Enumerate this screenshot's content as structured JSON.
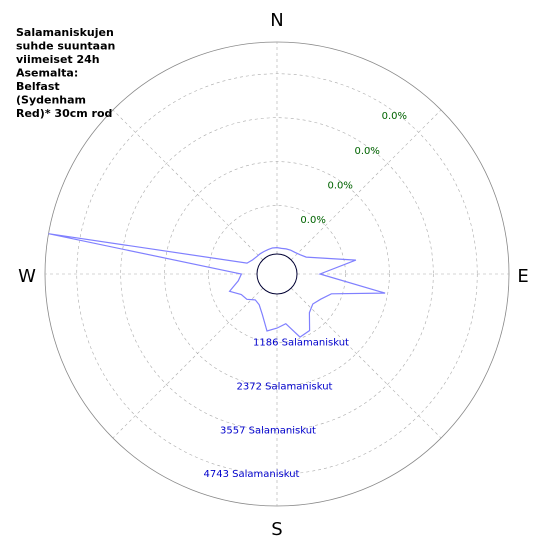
{
  "chart_data": {
    "type": "polar",
    "title_lines": [
      "Salamaniskujen",
      "suhde suuntaan",
      "viimeiset 24h",
      "Asemalta:",
      "Belfast",
      "(Sydenham",
      "Red)* 30cm rod"
    ],
    "directions": [
      "N",
      "E",
      "S",
      "W"
    ],
    "angles": [
      0,
      10,
      20,
      30,
      40,
      50,
      60,
      70,
      80,
      90,
      100,
      110,
      120,
      130,
      140,
      150,
      160,
      170,
      180,
      190,
      200,
      210,
      220,
      230,
      240,
      250,
      260,
      270,
      280,
      290,
      300,
      310,
      320,
      330,
      340,
      350
    ],
    "series": [
      {
        "color": "#8080ff",
        "values": [
          50,
          40,
          60,
          80,
          100,
          150,
          250,
          600,
          1500,
          500,
          2300,
          900,
          700,
          600,
          700,
          1100,
          1150,
          700,
          800,
          900,
          500,
          300,
          250,
          400,
          450,
          700,
          400,
          300,
          5600,
          200,
          100,
          60,
          50,
          40,
          40,
          50
        ]
      }
    ],
    "rlim": [
      0,
      5600
    ],
    "rticks": [
      {
        "value": 1186,
        "label": "1186 Salamaniskut"
      },
      {
        "value": 2372,
        "label": "2372 Salamaniskut"
      },
      {
        "value": 3557,
        "label": "3557 Salamaniskut"
      },
      {
        "value": 4743,
        "label": "4743 Salamaniskut"
      }
    ],
    "pct_ticks": [
      {
        "value": 0,
        "label": "0.0%"
      },
      {
        "value": 0,
        "label": "0.0%"
      },
      {
        "value": 0,
        "label": "0.0%"
      },
      {
        "value": 0,
        "label": "0.0%"
      }
    ],
    "grid": true
  }
}
